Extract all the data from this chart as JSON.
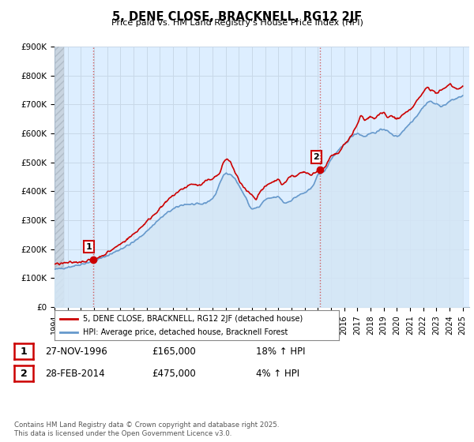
{
  "title": "5, DENE CLOSE, BRACKNELL, RG12 2JF",
  "subtitle": "Price paid vs. HM Land Registry's House Price Index (HPI)",
  "ylim": [
    0,
    900000
  ],
  "yticks": [
    0,
    100000,
    200000,
    300000,
    400000,
    500000,
    600000,
    700000,
    800000,
    900000
  ],
  "ytick_labels": [
    "£0",
    "£100K",
    "£200K",
    "£300K",
    "£400K",
    "£500K",
    "£600K",
    "£700K",
    "£800K",
    "£900K"
  ],
  "sale1_year": 1996.92,
  "sale1_price": 165000,
  "sale2_year": 2014.17,
  "sale2_price": 475000,
  "line_color_red": "#cc0000",
  "line_color_blue": "#6699cc",
  "fill_color_blue": "#d4e6f5",
  "bg_color": "#ffffff",
  "grid_color": "#c8d8e8",
  "hatch_color": "#d8e0e8",
  "legend_label_red": "5, DENE CLOSE, BRACKNELL, RG12 2JF (detached house)",
  "legend_label_blue": "HPI: Average price, detached house, Bracknell Forest",
  "table_row1": [
    "1",
    "27-NOV-1996",
    "£165,000",
    "18% ↑ HPI"
  ],
  "table_row2": [
    "2",
    "28-FEB-2014",
    "£475,000",
    "4% ↑ HPI"
  ],
  "footnote": "Contains HM Land Registry data © Crown copyright and database right 2025.\nThis data is licensed under the Open Government Licence v3.0."
}
